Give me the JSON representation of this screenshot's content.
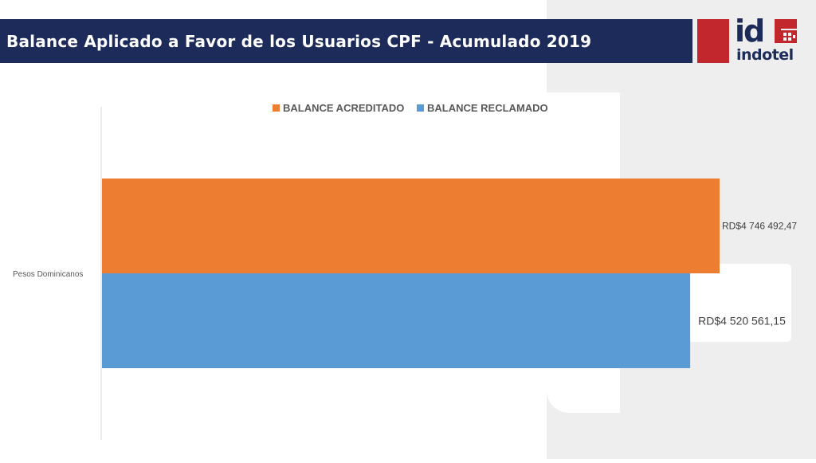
{
  "header": {
    "title": "Balance Aplicado a Favor de los Usuarios CPF - Acumulado 2019"
  },
  "logo": {
    "mark_text": "id",
    "wordmark": "indotel"
  },
  "colors": {
    "title_bar": "#1c2b5a",
    "accent_red": "#c1272d",
    "series_acreditado": "#ed7d31",
    "series_reclamado": "#5b9bd5"
  },
  "chart_data": {
    "type": "bar",
    "orientation": "horizontal",
    "categories": [
      "Pesos Dominicanos"
    ],
    "series": [
      {
        "name": "BALANCE ACREDITADO",
        "values": [
          4746492.47
        ],
        "label": "RD$4 746 492,47"
      },
      {
        "name": "BALANCE RECLAMADO",
        "values": [
          4520561.15
        ],
        "label": "RD$4 520 561,15"
      }
    ],
    "xlim": [
      0,
      4800000
    ],
    "legend_position": "top",
    "grid": false,
    "title": "",
    "xlabel": "",
    "ylabel": ""
  }
}
